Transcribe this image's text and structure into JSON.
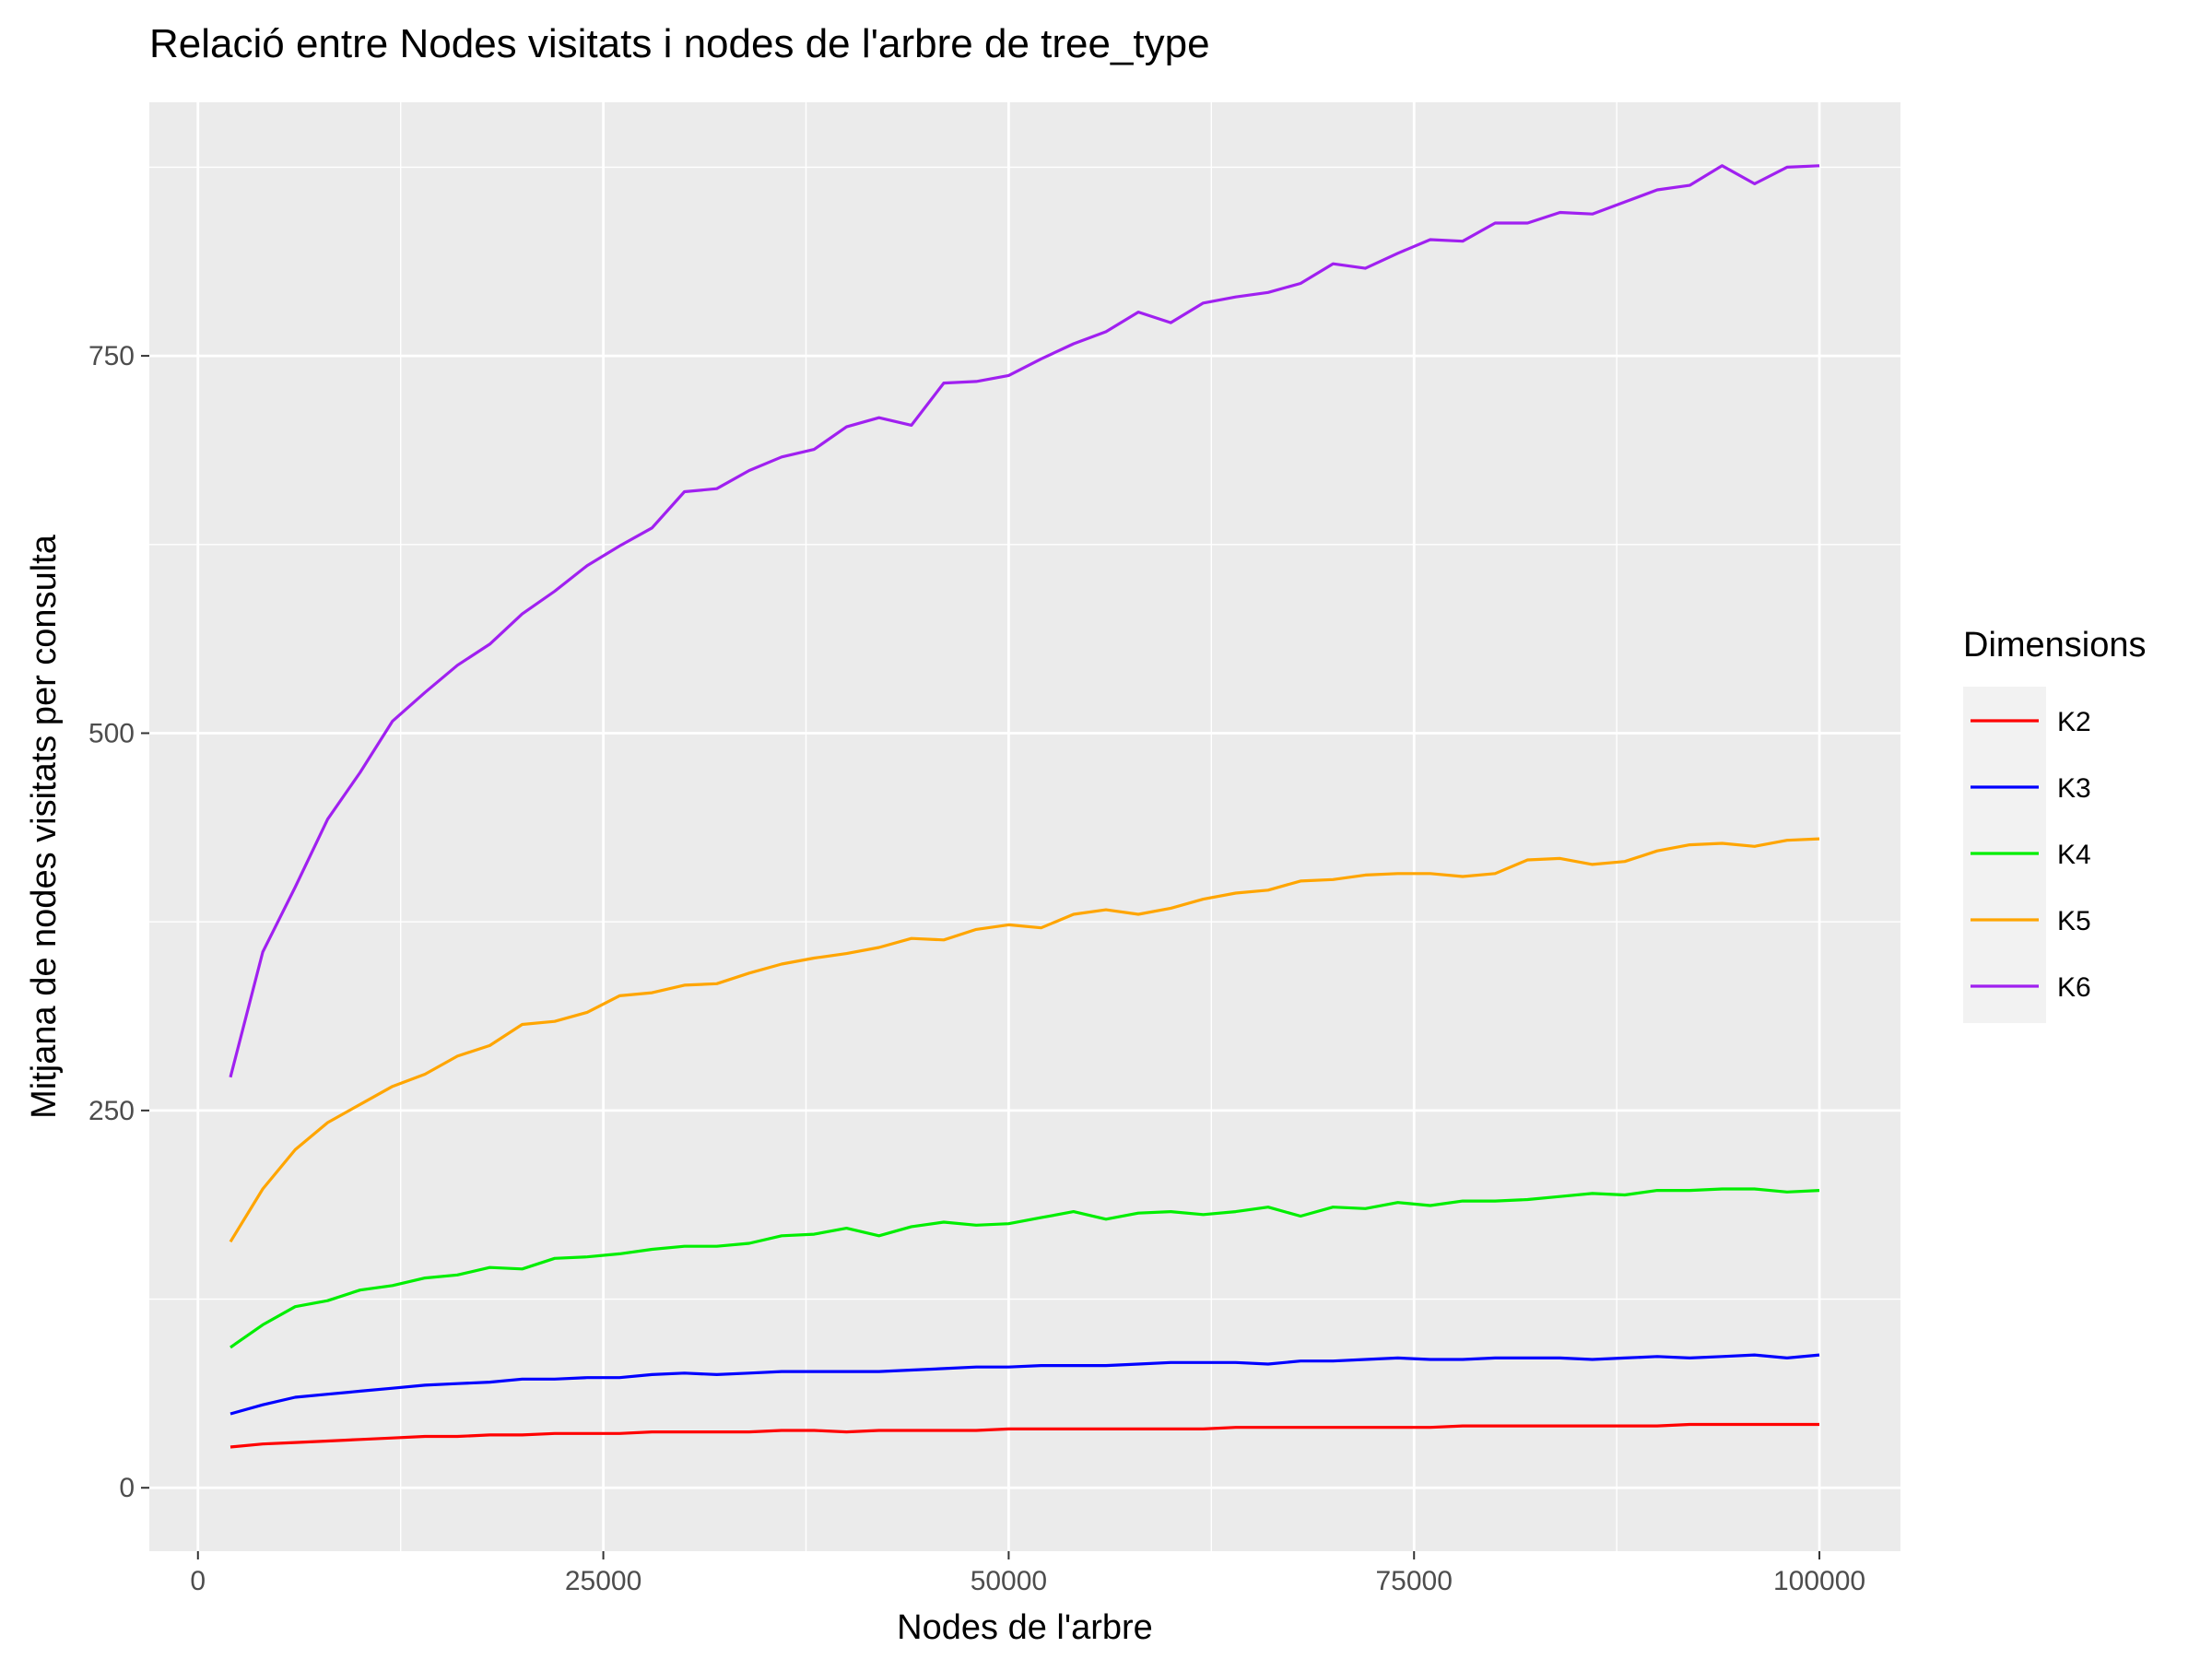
{
  "chart_data": {
    "type": "line",
    "title": "Relació entre Nodes visitats i nodes de l'arbre de tree_type",
    "xlabel": "Nodes de l'arbre",
    "ylabel": "Mitjana de nodes visitats per consulta",
    "xlim": [
      -3000,
      105000
    ],
    "ylim": [
      -42,
      918
    ],
    "x_ticks": [
      0,
      25000,
      50000,
      75000,
      100000
    ],
    "y_ticks": [
      0,
      250,
      500,
      750
    ],
    "grid": true,
    "legend": {
      "title": "Dimensions",
      "placement": "right"
    },
    "x": [
      2000,
      4000,
      6000,
      8000,
      10000,
      12000,
      14000,
      16000,
      18000,
      20000,
      22000,
      24000,
      26000,
      28000,
      30000,
      32000,
      34000,
      36000,
      38000,
      40000,
      42000,
      44000,
      46000,
      48000,
      50000,
      52000,
      54000,
      56000,
      58000,
      60000,
      62000,
      64000,
      66000,
      68000,
      70000,
      72000,
      74000,
      76000,
      78000,
      80000,
      82000,
      84000,
      86000,
      88000,
      90000,
      92000,
      94000,
      96000,
      98000,
      100000
    ],
    "series": [
      {
        "name": "K2",
        "color": "#ff0000",
        "values": [
          27,
          29,
          30,
          31,
          32,
          33,
          34,
          34,
          35,
          35,
          36,
          36,
          36,
          37,
          37,
          37,
          37,
          38,
          38,
          37,
          38,
          38,
          38,
          38,
          39,
          39,
          39,
          39,
          39,
          39,
          39,
          40,
          40,
          40,
          40,
          40,
          40,
          40,
          41,
          41,
          41,
          41,
          41,
          41,
          41,
          42,
          42,
          42,
          42,
          42
        ]
      },
      {
        "name": "K3",
        "color": "#0000ff",
        "values": [
          49,
          55,
          60,
          62,
          64,
          66,
          68,
          69,
          70,
          72,
          72,
          73,
          73,
          75,
          76,
          75,
          76,
          77,
          77,
          77,
          77,
          78,
          79,
          80,
          80,
          81,
          81,
          81,
          82,
          83,
          83,
          83,
          82,
          84,
          84,
          85,
          86,
          85,
          85,
          86,
          86,
          86,
          85,
          86,
          87,
          86,
          87,
          88,
          86,
          88
        ]
      },
      {
        "name": "K4",
        "color": "#00ee00",
        "values": [
          93,
          108,
          120,
          124,
          131,
          134,
          139,
          141,
          146,
          145,
          152,
          153,
          155,
          158,
          160,
          160,
          162,
          167,
          168,
          172,
          167,
          173,
          176,
          174,
          175,
          179,
          183,
          178,
          182,
          183,
          181,
          183,
          186,
          180,
          186,
          185,
          189,
          187,
          190,
          190,
          191,
          193,
          195,
          194,
          197,
          197,
          198,
          198,
          196,
          197
        ]
      },
      {
        "name": "K5",
        "color": "#ffa500",
        "values": [
          163,
          198,
          224,
          242,
          254,
          266,
          274,
          286,
          293,
          307,
          309,
          315,
          326,
          328,
          333,
          334,
          341,
          347,
          351,
          354,
          358,
          364,
          363,
          370,
          373,
          371,
          380,
          383,
          380,
          384,
          390,
          394,
          396,
          402,
          403,
          406,
          407,
          407,
          405,
          407,
          416,
          417,
          413,
          415,
          422,
          426,
          427,
          425,
          429,
          430
        ]
      },
      {
        "name": "K6",
        "color": "#a020f0",
        "values": [
          272,
          355,
          398,
          443,
          474,
          508,
          527,
          545,
          559,
          579,
          594,
          611,
          624,
          636,
          660,
          662,
          674,
          683,
          688,
          703,
          709,
          704,
          732,
          733,
          737,
          748,
          758,
          766,
          779,
          772,
          785,
          789,
          792,
          798,
          811,
          808,
          818,
          827,
          826,
          838,
          838,
          845,
          844,
          852,
          860,
          863,
          876,
          864,
          875,
          876
        ]
      }
    ]
  }
}
